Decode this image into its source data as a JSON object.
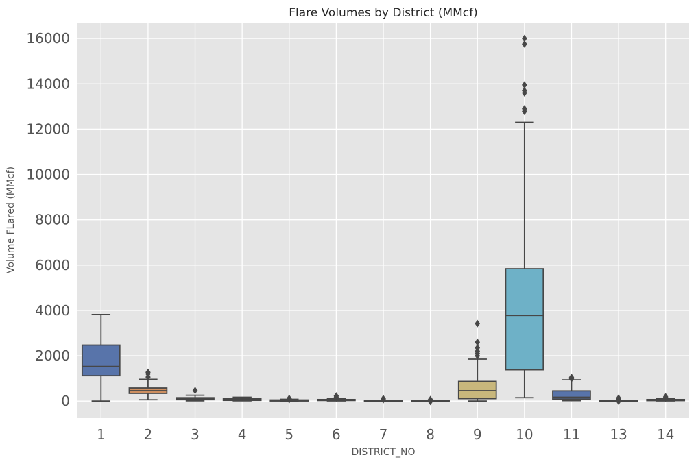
{
  "chart_data": {
    "type": "boxplot",
    "title": "Flare Volumes by District (MMcf)",
    "xlabel": "DISTRICT_NO",
    "ylabel": "Volume FLared (MMcf)",
    "ylim": [
      -750,
      16700
    ],
    "yticks": [
      0,
      2000,
      4000,
      6000,
      8000,
      10000,
      12000,
      14000,
      16000
    ],
    "grid": true,
    "background": "#e5e5e5",
    "grid_color": "#ffffff",
    "line_color": "#474747",
    "categories": [
      "1",
      "2",
      "3",
      "4",
      "5",
      "6",
      "7",
      "8",
      "9",
      "10",
      "11",
      "13",
      "14"
    ],
    "boxes": [
      {
        "category": "1",
        "whisker_low": 0,
        "q1": 1120,
        "median": 1530,
        "q3": 2470,
        "whisker_high": 3820,
        "outliers": [],
        "color": "#5874aa"
      },
      {
        "category": "2",
        "whisker_low": 60,
        "q1": 340,
        "median": 460,
        "q3": 580,
        "whisker_high": 960,
        "outliers": [
          1060,
          1200,
          1270
        ],
        "color": "#ce8f60"
      },
      {
        "category": "3",
        "whisker_low": 10,
        "q1": 60,
        "median": 100,
        "q3": 150,
        "whisker_high": 260,
        "outliers": [
          470
        ],
        "color": "#7b7b7b"
      },
      {
        "category": "4",
        "whisker_low": 10,
        "q1": 30,
        "median": 60,
        "q3": 100,
        "whisker_high": 170,
        "outliers": [],
        "color": "#7b7b7b"
      },
      {
        "category": "5",
        "whisker_low": 0,
        "q1": 10,
        "median": 30,
        "q3": 50,
        "whisker_high": 80,
        "outliers": [
          60,
          100,
          120
        ],
        "color": "#7b7b7b"
      },
      {
        "category": "6",
        "whisker_low": 5,
        "q1": 25,
        "median": 40,
        "q3": 70,
        "whisker_high": 120,
        "outliers": [
          140,
          180,
          230
        ],
        "color": "#7b7b7b"
      },
      {
        "category": "7",
        "whisker_low": 0,
        "q1": 5,
        "median": 10,
        "q3": 20,
        "whisker_high": 40,
        "outliers": [
          60,
          90,
          110
        ],
        "color": "#7b7b7b"
      },
      {
        "category": "8",
        "whisker_low": 0,
        "q1": 5,
        "median": 10,
        "q3": 20,
        "whisker_high": 30,
        "outliers": [
          40,
          70,
          -20
        ],
        "color": "#7b7b7b"
      },
      {
        "category": "9",
        "whisker_low": 0,
        "q1": 110,
        "median": 460,
        "q3": 870,
        "whisker_high": 1850,
        "outliers": [
          2000,
          2100,
          2200,
          2350,
          2600,
          3420
        ],
        "color": "#c8b77c"
      },
      {
        "category": "10",
        "whisker_low": 150,
        "q1": 1380,
        "median": 3780,
        "q3": 5840,
        "whisker_high": 12300,
        "outliers": [
          12780,
          12900,
          13600,
          13700,
          13950,
          15750,
          16000
        ],
        "color": "#6eb1c7"
      },
      {
        "category": "11",
        "whisker_low": 20,
        "q1": 90,
        "median": 170,
        "q3": 450,
        "whisker_high": 940,
        "outliers": [
          990,
          1050
        ],
        "color": "#5874aa"
      },
      {
        "category": "13",
        "whisker_low": 0,
        "q1": 5,
        "median": 10,
        "q3": 20,
        "whisker_high": 30,
        "outliers": [
          50,
          100,
          130,
          -10
        ],
        "color": "#7b7b7b"
      },
      {
        "category": "14",
        "whisker_low": 5,
        "q1": 20,
        "median": 40,
        "q3": 70,
        "whisker_high": 110,
        "outliers": [
          130,
          160,
          190
        ],
        "color": "#7b7b7b"
      }
    ]
  }
}
